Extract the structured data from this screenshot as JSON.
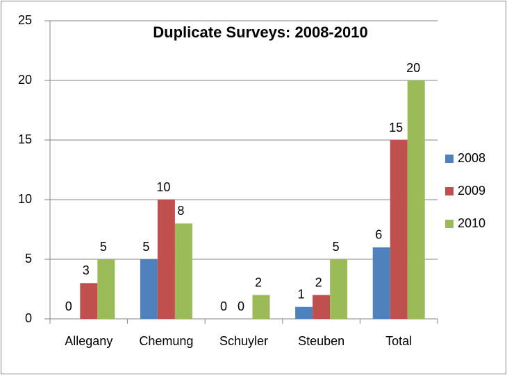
{
  "chart_data": {
    "type": "bar",
    "title": "Duplicate Surveys: 2008-2010",
    "categories": [
      "Allegany",
      "Chemung",
      "Schuyler",
      "Steuben",
      "Total"
    ],
    "series": [
      {
        "name": "2008",
        "color": "#4f81bd",
        "values": [
          0,
          5,
          0,
          1,
          6
        ]
      },
      {
        "name": "2009",
        "color": "#c0504d",
        "values": [
          3,
          10,
          0,
          2,
          15
        ]
      },
      {
        "name": "2010",
        "color": "#9bbb59",
        "values": [
          5,
          8,
          2,
          5,
          20
        ]
      }
    ],
    "ylim": [
      0,
      25
    ],
    "yticks": [
      0,
      5,
      10,
      15,
      20,
      25
    ],
    "grid": true,
    "legend": "right"
  }
}
